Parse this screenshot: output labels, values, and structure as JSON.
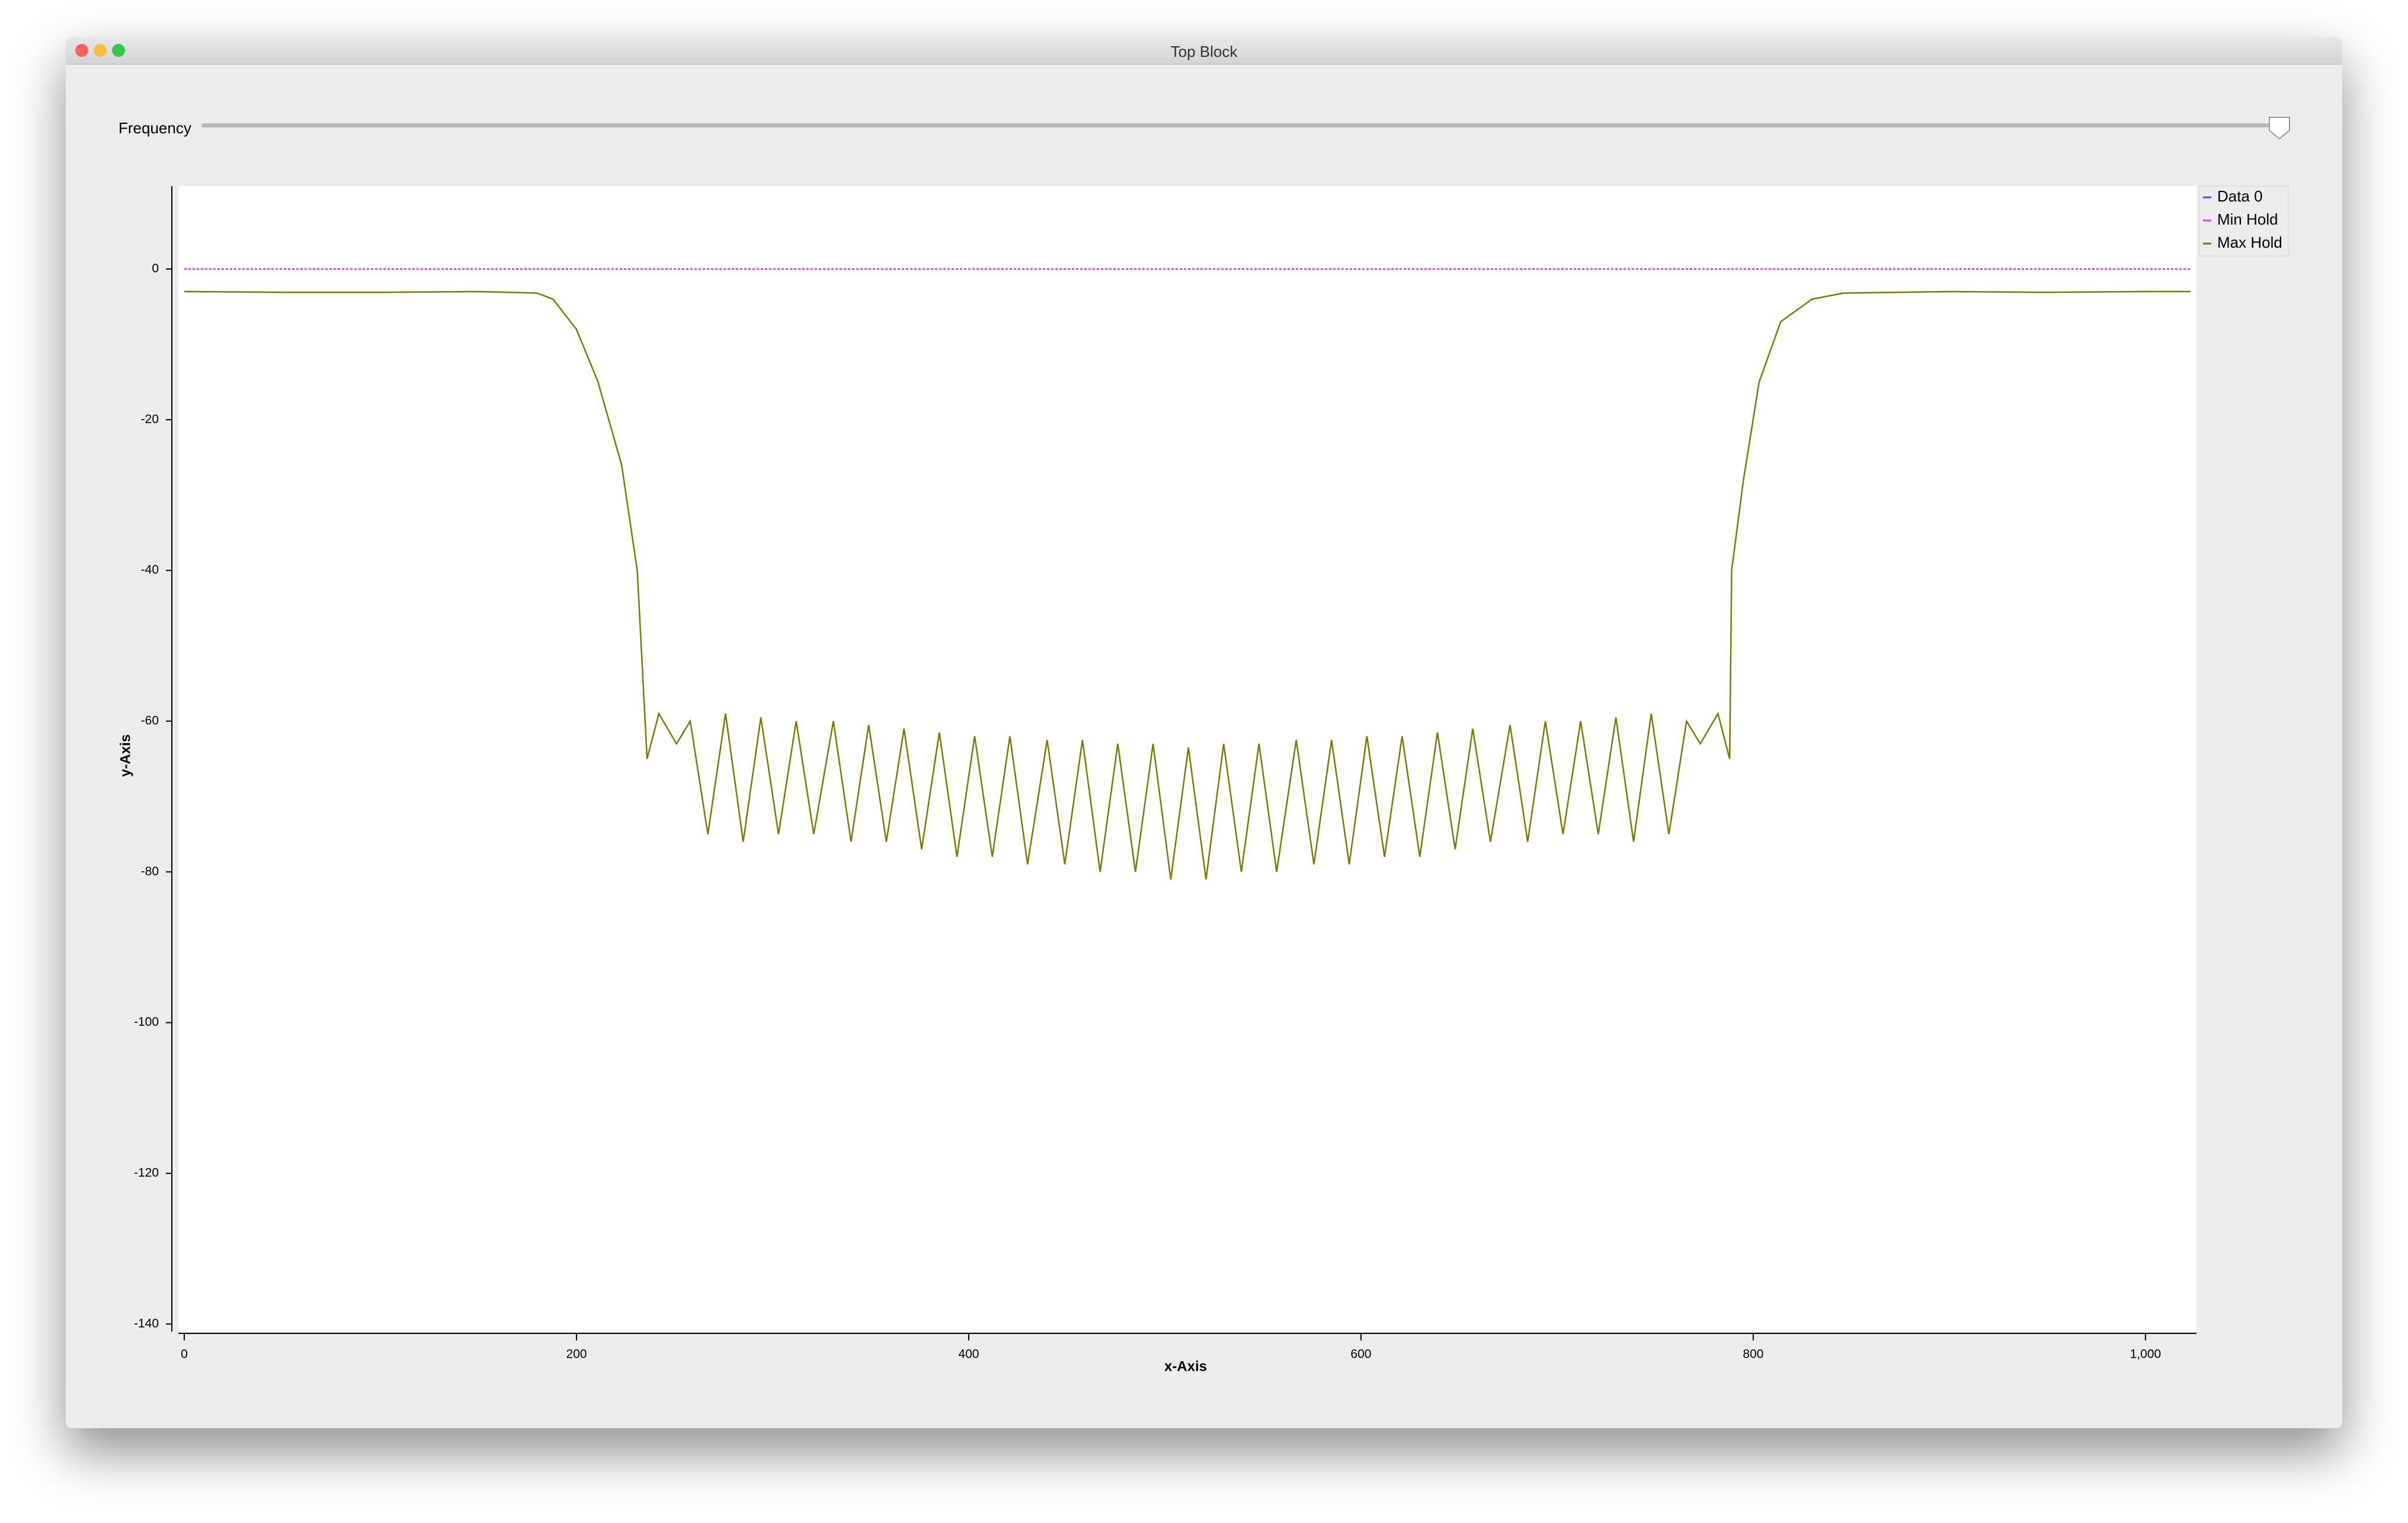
{
  "window_title": "Top Block",
  "slider_label": "Frequency",
  "chart_data": {
    "type": "line",
    "xlabel": "x-Axis",
    "ylabel": "y-Axis",
    "xlim": [
      -3,
      1026
    ],
    "ylim": [
      -141,
      11
    ],
    "xticks": [
      0,
      200,
      400,
      600,
      800,
      {
        "value": 1000,
        "label": "1,000"
      }
    ],
    "yticks": [
      0,
      -20,
      -40,
      -60,
      -80,
      -100,
      -120,
      -140
    ],
    "series": [
      {
        "name": "Data 0",
        "color": "#2a5cff",
        "x": [
          0,
          1023
        ],
        "values": [
          0,
          0
        ]
      },
      {
        "name": "Min Hold",
        "color": "#e040e0",
        "x": [
          0,
          1023
        ],
        "values": [
          0,
          0
        ]
      },
      {
        "name": "Max Hold",
        "color": "#7a7a00",
        "x": [
          0,
          50,
          100,
          150,
          180,
          188,
          200,
          211,
          223,
          231,
          236,
          242,
          251,
          258,
          267,
          276,
          285,
          294,
          303,
          312,
          321,
          331,
          340,
          349,
          358,
          367,
          376,
          385,
          394,
          403,
          412,
          421,
          430,
          440,
          449,
          458,
          467,
          476,
          485,
          494,
          503,
          512,
          521,
          530,
          539,
          548,
          557,
          567,
          576,
          585,
          594,
          603,
          612,
          621,
          630,
          639,
          648,
          657,
          666,
          676,
          685,
          694,
          703,
          712,
          721,
          730,
          739,
          748,
          757,
          766,
          773,
          782,
          788,
          789,
          795,
          803,
          814,
          830,
          846,
          900,
          950,
          1000,
          1023
        ],
        "values": [
          -3,
          -3.1,
          -3.1,
          -3,
          -3.2,
          -4,
          -8,
          -15,
          -26,
          -40,
          -65,
          -59,
          -63,
          -60,
          -75,
          -59,
          -76,
          -59.5,
          -75,
          -60,
          -75,
          -60,
          -76,
          -60.5,
          -76,
          -61,
          -77,
          -61.5,
          -78,
          -62,
          -78,
          -62,
          -79,
          -62.5,
          -79,
          -62.5,
          -80,
          -63,
          -80,
          -63,
          -81,
          -63.5,
          -81,
          -63,
          -80,
          -63,
          -80,
          -62.5,
          -79,
          -62.5,
          -79,
          -62,
          -78,
          -62,
          -78,
          -61.5,
          -77,
          -61,
          -76,
          -60.5,
          -76,
          -60,
          -75,
          -60,
          -75,
          -59.5,
          -76,
          -59,
          -75,
          -60,
          -63,
          -59,
          -65,
          -40,
          -28,
          -15,
          -7,
          -4,
          -3.2,
          -3,
          -3.1,
          -3,
          -3
        ]
      }
    ],
    "legend": "upper-right",
    "grid": false
  }
}
